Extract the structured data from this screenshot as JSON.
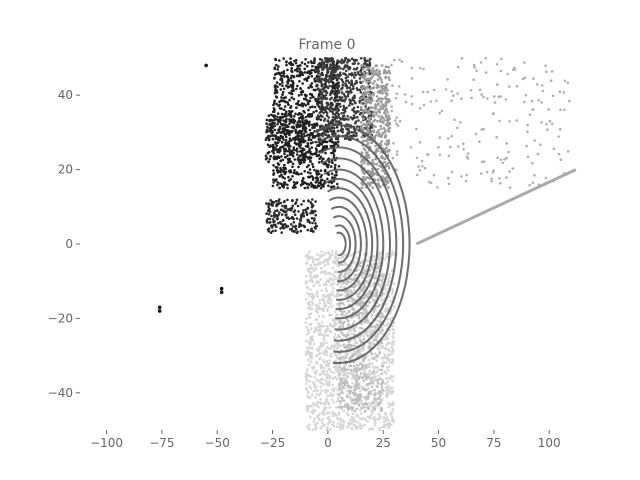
{
  "chart_data": {
    "type": "scatter",
    "title": "Frame 0",
    "xlabel": "",
    "ylabel": "",
    "xlim": [
      -112,
      113
    ],
    "ylim": [
      -50,
      50
    ],
    "xticks": [
      -100,
      -75,
      -50,
      -25,
      0,
      25,
      50,
      75,
      100
    ],
    "yticks": [
      -40,
      -20,
      0,
      20,
      40
    ],
    "xtick_labels": [
      "−100",
      "−75",
      "−50",
      "−25",
      "0",
      "25",
      "50",
      "75",
      "100"
    ],
    "ytick_labels": [
      "−40",
      "−20",
      "0",
      "20",
      "40"
    ],
    "grid": false,
    "legend": "none",
    "colormap": "grayscale",
    "sensor_origin": [
      5,
      0
    ],
    "rings": {
      "center": [
        5,
        0
      ],
      "radii": [
        3,
        5,
        7.5,
        10,
        12.5,
        15,
        17.5,
        20,
        23,
        26,
        29,
        32
      ],
      "angle_range_deg": [
        -95,
        110
      ],
      "color": "#555555"
    },
    "clusters": [
      {
        "name": "upper-left-structure",
        "x": [
          -25,
          5
        ],
        "y": [
          15,
          50
        ],
        "count": 900,
        "color": "#1f1f1f"
      },
      {
        "name": "left-wall",
        "x": [
          -28,
          -8
        ],
        "y": [
          22,
          35
        ],
        "count": 250,
        "color": "#222222"
      },
      {
        "name": "upper-center-buildings",
        "x": [
          -5,
          20
        ],
        "y": [
          28,
          50
        ],
        "count": 600,
        "color": "#3a3a3a"
      },
      {
        "name": "mid-left-objects",
        "x": [
          -28,
          -5
        ],
        "y": [
          3,
          12
        ],
        "count": 200,
        "color": "#2a2a2a"
      },
      {
        "name": "right-upper-gray",
        "x": [
          15,
          28
        ],
        "y": [
          15,
          48
        ],
        "count": 500,
        "color": "#9a9a9a"
      },
      {
        "name": "sparse-upper-right",
        "x": [
          28,
          110
        ],
        "y": [
          15,
          50
        ],
        "count": 200,
        "color": "#b0b0b0"
      },
      {
        "name": "lower-road",
        "x": [
          -10,
          30
        ],
        "y": [
          -50,
          -2
        ],
        "count": 1600,
        "color": "#d6d6d6"
      },
      {
        "name": "lower-road-dark",
        "x": [
          5,
          25
        ],
        "y": [
          -45,
          -5
        ],
        "count": 500,
        "color": "#bdbdbd"
      }
    ],
    "road_edge_line": {
      "from": [
        40,
        0
      ],
      "to": [
        112,
        20
      ],
      "color": "#aaaaaa"
    },
    "isolated_points": [
      {
        "x": -76,
        "y": -17
      },
      {
        "x": -76,
        "y": -18
      },
      {
        "x": -48,
        "y": -12
      },
      {
        "x": -48,
        "y": -13
      },
      {
        "x": -55,
        "y": 48
      }
    ]
  }
}
